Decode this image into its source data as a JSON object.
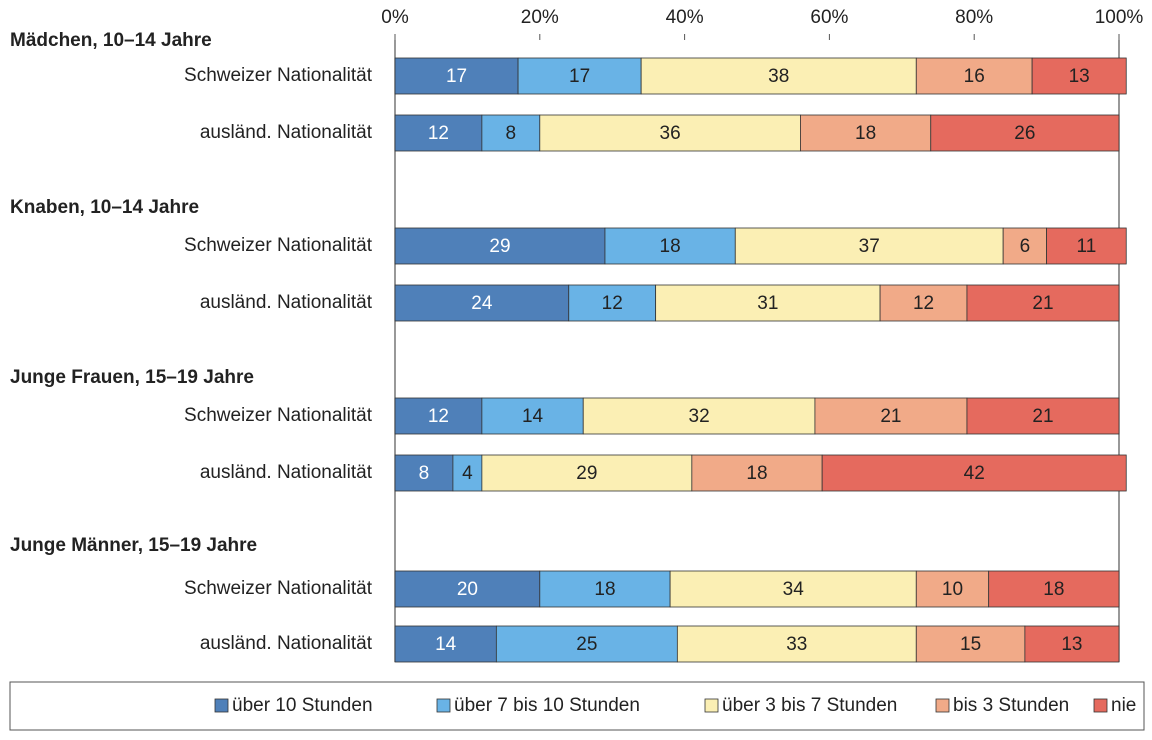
{
  "chart_data": {
    "type": "stacked-bar",
    "xlim": [
      0,
      100
    ],
    "xticks": [
      {
        "value": 0,
        "label": "0%"
      },
      {
        "value": 20,
        "label": "20%"
      },
      {
        "value": 40,
        "label": "40%"
      },
      {
        "value": 60,
        "label": "60%"
      },
      {
        "value": 80,
        "label": "80%"
      },
      {
        "value": 100,
        "label": "100%"
      }
    ],
    "groups": [
      {
        "title": "Mädchen, 10–14 Jahre",
        "categories": [
          "Schweizer Nationalität",
          "ausländ. Nationalität"
        ]
      },
      {
        "title": "Knaben, 10–14 Jahre",
        "categories": [
          "Schweizer Nationalität",
          "ausländ. Nationalität"
        ]
      },
      {
        "title": "Junge Frauen, 15–19 Jahre",
        "categories": [
          "Schweizer Nationalität",
          "ausländ. Nationalität"
        ]
      },
      {
        "title": "Junge Männer, 15–19 Jahre",
        "categories": [
          "Schweizer Nationalität",
          "ausländ. Nationalität"
        ]
      }
    ],
    "series": [
      {
        "name": "über 10 Stunden",
        "color": "#4f80b9",
        "values": [
          17,
          12,
          29,
          24,
          12,
          8,
          20,
          14
        ]
      },
      {
        "name": "über 7 bis 10 Stunden",
        "color": "#69b3e6",
        "values": [
          17,
          8,
          18,
          12,
          14,
          4,
          18,
          25
        ]
      },
      {
        "name": "über 3 bis 7 Stunden",
        "color": "#fbefb4",
        "values": [
          38,
          36,
          37,
          31,
          32,
          29,
          34,
          33
        ]
      },
      {
        "name": "bis 3 Stunden",
        "color": "#f1aa88",
        "values": [
          16,
          18,
          6,
          12,
          21,
          18,
          10,
          15
        ]
      },
      {
        "name": "nie",
        "color": "#e56a5e",
        "values": [
          13,
          26,
          11,
          21,
          21,
          42,
          18,
          13
        ]
      }
    ],
    "legend": "bottom"
  }
}
